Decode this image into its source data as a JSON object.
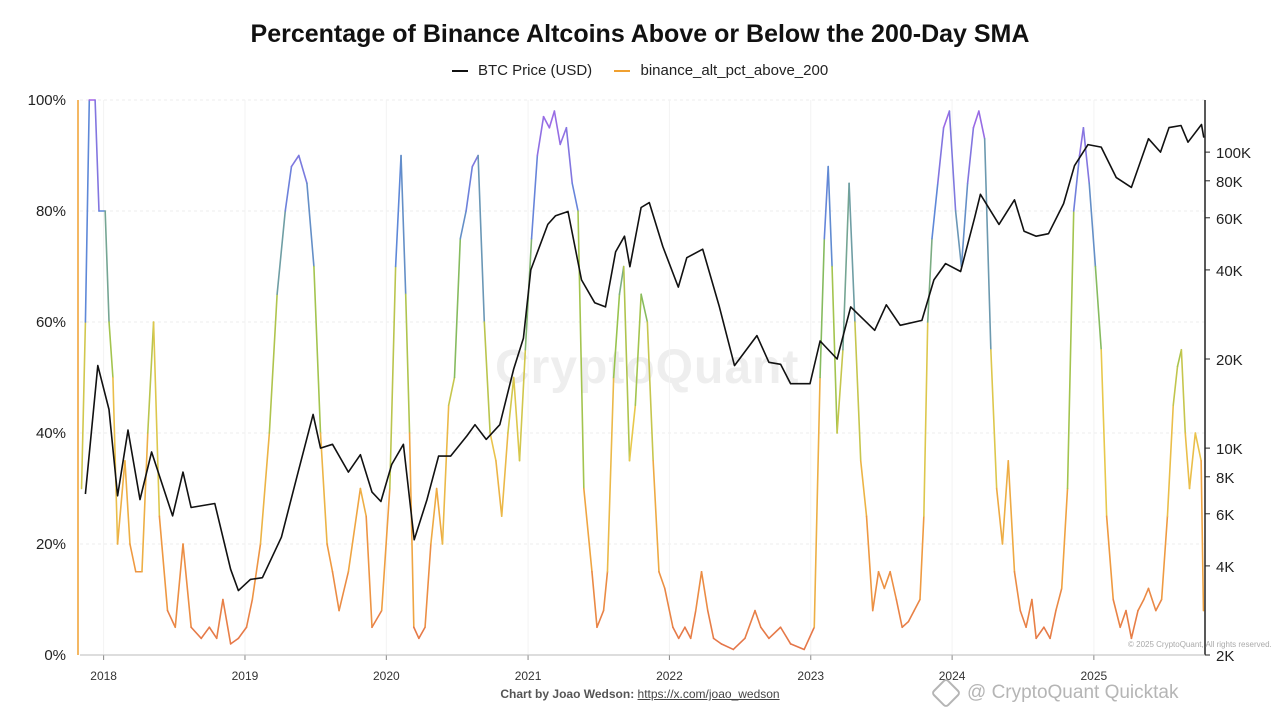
{
  "chart_data": {
    "type": "line",
    "title": "Percentage of Binance Altcoins Above or Below the 200-Day SMA",
    "legend_position": "top-center",
    "grid": true,
    "x_axis": {
      "type": "date",
      "range": [
        "2017-11-01",
        "2025-10-15"
      ],
      "tick_labels": [
        "2018",
        "2019",
        "2020",
        "2021",
        "2022",
        "2023",
        "2024",
        "2025"
      ]
    },
    "y_left": {
      "range": [
        0,
        100
      ],
      "unit": "%",
      "tick_labels": [
        "0%",
        "20%",
        "40%",
        "60%",
        "80%",
        "100%"
      ]
    },
    "y_right": {
      "scale": "log",
      "range": [
        2000,
        150000
      ],
      "ticks": [
        2000,
        4000,
        6000,
        8000,
        10000,
        20000,
        40000,
        60000,
        80000,
        100000
      ],
      "tick_labels": [
        "2K",
        "4K",
        "6K",
        "8K",
        "10K",
        "20K",
        "40K",
        "60K",
        "80K",
        "100K"
      ]
    },
    "series": [
      {
        "name": "BTC Price (USD)",
        "axis": "right",
        "color": "#111111",
        "points": [
          [
            "2017-11-15",
            7000
          ],
          [
            "2017-12-17",
            19000
          ],
          [
            "2018-01-15",
            13500
          ],
          [
            "2018-02-06",
            6900
          ],
          [
            "2018-03-05",
            11500
          ],
          [
            "2018-04-05",
            6700
          ],
          [
            "2018-05-05",
            9700
          ],
          [
            "2018-06-28",
            5900
          ],
          [
            "2018-07-25",
            8300
          ],
          [
            "2018-08-15",
            6300
          ],
          [
            "2018-10-15",
            6500
          ],
          [
            "2018-11-25",
            3900
          ],
          [
            "2018-12-15",
            3300
          ],
          [
            "2019-01-15",
            3600
          ],
          [
            "2019-02-15",
            3650
          ],
          [
            "2019-04-05",
            5000
          ],
          [
            "2019-05-15",
            8000
          ],
          [
            "2019-06-26",
            13000
          ],
          [
            "2019-07-15",
            10000
          ],
          [
            "2019-08-15",
            10300
          ],
          [
            "2019-09-25",
            8300
          ],
          [
            "2019-10-26",
            9500
          ],
          [
            "2019-11-25",
            7100
          ],
          [
            "2019-12-18",
            6600
          ],
          [
            "2020-01-15",
            8800
          ],
          [
            "2020-02-14",
            10300
          ],
          [
            "2020-03-13",
            4900
          ],
          [
            "2020-04-15",
            6700
          ],
          [
            "2020-05-15",
            9400
          ],
          [
            "2020-06-15",
            9400
          ],
          [
            "2020-07-27",
            11000
          ],
          [
            "2020-08-17",
            12000
          ],
          [
            "2020-09-15",
            10700
          ],
          [
            "2020-10-20",
            12000
          ],
          [
            "2020-11-25",
            18500
          ],
          [
            "2020-12-20",
            23500
          ],
          [
            "2021-01-08",
            40000
          ],
          [
            "2021-02-21",
            57000
          ],
          [
            "2021-03-13",
            61000
          ],
          [
            "2021-04-14",
            63000
          ],
          [
            "2021-05-19",
            37000
          ],
          [
            "2021-06-22",
            31000
          ],
          [
            "2021-07-20",
            30000
          ],
          [
            "2021-08-15",
            46000
          ],
          [
            "2021-09-07",
            52000
          ],
          [
            "2021-09-21",
            41000
          ],
          [
            "2021-10-20",
            65000
          ],
          [
            "2021-11-10",
            67500
          ],
          [
            "2021-12-15",
            48000
          ],
          [
            "2022-01-24",
            35000
          ],
          [
            "2022-02-15",
            44000
          ],
          [
            "2022-03-28",
            47000
          ],
          [
            "2022-05-10",
            30000
          ],
          [
            "2022-06-18",
            19000
          ],
          [
            "2022-08-15",
            24000
          ],
          [
            "2022-09-15",
            19500
          ],
          [
            "2022-10-15",
            19200
          ],
          [
            "2022-11-10",
            16500
          ],
          [
            "2022-12-30",
            16500
          ],
          [
            "2023-01-25",
            23000
          ],
          [
            "2023-03-10",
            20000
          ],
          [
            "2023-04-14",
            30000
          ],
          [
            "2023-06-15",
            25000
          ],
          [
            "2023-07-15",
            30500
          ],
          [
            "2023-08-20",
            26000
          ],
          [
            "2023-10-15",
            27000
          ],
          [
            "2023-11-15",
            37000
          ],
          [
            "2023-12-15",
            42000
          ],
          [
            "2024-01-23",
            39500
          ],
          [
            "2024-02-28",
            60000
          ],
          [
            "2024-03-14",
            72000
          ],
          [
            "2024-05-01",
            57000
          ],
          [
            "2024-06-10",
            69000
          ],
          [
            "2024-07-05",
            54000
          ],
          [
            "2024-08-05",
            52000
          ],
          [
            "2024-09-06",
            53000
          ],
          [
            "2024-10-15",
            67000
          ],
          [
            "2024-11-12",
            90000
          ],
          [
            "2024-12-17",
            106000
          ],
          [
            "2025-01-20",
            104000
          ],
          [
            "2025-02-28",
            82000
          ],
          [
            "2025-04-08",
            76000
          ],
          [
            "2025-05-22",
            111000
          ],
          [
            "2025-06-22",
            100000
          ],
          [
            "2025-07-14",
            121000
          ],
          [
            "2025-08-14",
            123000
          ],
          [
            "2025-09-01",
            108000
          ],
          [
            "2025-10-06",
            124000
          ],
          [
            "2025-10-12",
            112000
          ]
        ]
      },
      {
        "name": "binance_alt_pct_above_200",
        "axis": "left",
        "color": "#f0a030",
        "color_scale": [
          "#e4714a",
          "#f0a040",
          "#e8c84c",
          "#8cc24e",
          "#5e88d8",
          "#a864e8"
        ],
        "points": [
          [
            "2017-11-05",
            30
          ],
          [
            "2017-11-15",
            60
          ],
          [
            "2017-11-25",
            100
          ],
          [
            "2017-12-10",
            100
          ],
          [
            "2017-12-20",
            80
          ],
          [
            "2018-01-05",
            80
          ],
          [
            "2018-01-15",
            60
          ],
          [
            "2018-01-25",
            50
          ],
          [
            "2018-02-06",
            20
          ],
          [
            "2018-02-25",
            35
          ],
          [
            "2018-03-10",
            20
          ],
          [
            "2018-03-25",
            15
          ],
          [
            "2018-04-10",
            15
          ],
          [
            "2018-04-25",
            40
          ],
          [
            "2018-05-10",
            60
          ],
          [
            "2018-05-25",
            25
          ],
          [
            "2018-06-15",
            8
          ],
          [
            "2018-07-05",
            5
          ],
          [
            "2018-07-25",
            20
          ],
          [
            "2018-08-15",
            5
          ],
          [
            "2018-09-10",
            3
          ],
          [
            "2018-10-01",
            5
          ],
          [
            "2018-10-20",
            3
          ],
          [
            "2018-11-05",
            10
          ],
          [
            "2018-11-25",
            2
          ],
          [
            "2018-12-15",
            3
          ],
          [
            "2019-01-05",
            5
          ],
          [
            "2019-01-20",
            10
          ],
          [
            "2019-02-10",
            20
          ],
          [
            "2019-03-05",
            40
          ],
          [
            "2019-03-25",
            65
          ],
          [
            "2019-04-15",
            80
          ],
          [
            "2019-05-01",
            88
          ],
          [
            "2019-05-20",
            90
          ],
          [
            "2019-06-10",
            85
          ],
          [
            "2019-06-28",
            70
          ],
          [
            "2019-07-15",
            40
          ],
          [
            "2019-08-01",
            20
          ],
          [
            "2019-08-15",
            15
          ],
          [
            "2019-09-01",
            8
          ],
          [
            "2019-09-25",
            15
          ],
          [
            "2019-10-26",
            30
          ],
          [
            "2019-11-10",
            25
          ],
          [
            "2019-11-25",
            5
          ],
          [
            "2019-12-20",
            8
          ],
          [
            "2020-01-10",
            30
          ],
          [
            "2020-01-25",
            70
          ],
          [
            "2020-02-08",
            90
          ],
          [
            "2020-02-20",
            65
          ],
          [
            "2020-03-01",
            40
          ],
          [
            "2020-03-12",
            5
          ],
          [
            "2020-03-25",
            3
          ],
          [
            "2020-04-10",
            5
          ],
          [
            "2020-04-25",
            20
          ],
          [
            "2020-05-10",
            30
          ],
          [
            "2020-05-25",
            20
          ],
          [
            "2020-06-10",
            45
          ],
          [
            "2020-06-25",
            50
          ],
          [
            "2020-07-10",
            75
          ],
          [
            "2020-07-25",
            80
          ],
          [
            "2020-08-10",
            88
          ],
          [
            "2020-08-25",
            90
          ],
          [
            "2020-09-10",
            60
          ],
          [
            "2020-09-25",
            40
          ],
          [
            "2020-10-10",
            35
          ],
          [
            "2020-10-25",
            25
          ],
          [
            "2020-11-10",
            40
          ],
          [
            "2020-11-25",
            50
          ],
          [
            "2020-12-10",
            35
          ],
          [
            "2020-12-25",
            55
          ],
          [
            "2021-01-10",
            75
          ],
          [
            "2021-01-25",
            90
          ],
          [
            "2021-02-10",
            97
          ],
          [
            "2021-02-25",
            95
          ],
          [
            "2021-03-10",
            98
          ],
          [
            "2021-03-25",
            92
          ],
          [
            "2021-04-10",
            95
          ],
          [
            "2021-04-25",
            85
          ],
          [
            "2021-05-10",
            80
          ],
          [
            "2021-05-25",
            30
          ],
          [
            "2021-06-15",
            15
          ],
          [
            "2021-06-28",
            5
          ],
          [
            "2021-07-15",
            8
          ],
          [
            "2021-07-25",
            15
          ],
          [
            "2021-08-10",
            50
          ],
          [
            "2021-08-25",
            65
          ],
          [
            "2021-09-05",
            70
          ],
          [
            "2021-09-20",
            35
          ],
          [
            "2021-10-05",
            45
          ],
          [
            "2021-10-20",
            65
          ],
          [
            "2021-11-05",
            60
          ],
          [
            "2021-11-20",
            35
          ],
          [
            "2021-12-05",
            15
          ],
          [
            "2021-12-20",
            12
          ],
          [
            "2022-01-10",
            5
          ],
          [
            "2022-01-25",
            3
          ],
          [
            "2022-02-10",
            5
          ],
          [
            "2022-02-25",
            3
          ],
          [
            "2022-03-10",
            8
          ],
          [
            "2022-03-25",
            15
          ],
          [
            "2022-04-10",
            8
          ],
          [
            "2022-04-25",
            3
          ],
          [
            "2022-05-15",
            2
          ],
          [
            "2022-06-15",
            1
          ],
          [
            "2022-07-15",
            3
          ],
          [
            "2022-08-10",
            8
          ],
          [
            "2022-08-25",
            5
          ],
          [
            "2022-09-15",
            3
          ],
          [
            "2022-10-15",
            5
          ],
          [
            "2022-11-10",
            2
          ],
          [
            "2022-12-15",
            1
          ],
          [
            "2023-01-10",
            5
          ],
          [
            "2023-01-25",
            50
          ],
          [
            "2023-02-05",
            75
          ],
          [
            "2023-02-15",
            88
          ],
          [
            "2023-02-25",
            70
          ],
          [
            "2023-03-10",
            40
          ],
          [
            "2023-03-25",
            55
          ],
          [
            "2023-04-10",
            85
          ],
          [
            "2023-04-25",
            60
          ],
          [
            "2023-05-10",
            35
          ],
          [
            "2023-05-25",
            25
          ],
          [
            "2023-06-10",
            8
          ],
          [
            "2023-06-25",
            15
          ],
          [
            "2023-07-10",
            12
          ],
          [
            "2023-07-25",
            15
          ],
          [
            "2023-08-10",
            10
          ],
          [
            "2023-08-25",
            5
          ],
          [
            "2023-09-10",
            6
          ],
          [
            "2023-09-25",
            8
          ],
          [
            "2023-10-10",
            10
          ],
          [
            "2023-10-20",
            25
          ],
          [
            "2023-10-30",
            60
          ],
          [
            "2023-11-10",
            75
          ],
          [
            "2023-11-25",
            85
          ],
          [
            "2023-12-10",
            95
          ],
          [
            "2023-12-25",
            98
          ],
          [
            "2024-01-10",
            80
          ],
          [
            "2024-01-25",
            70
          ],
          [
            "2024-02-10",
            85
          ],
          [
            "2024-02-25",
            95
          ],
          [
            "2024-03-10",
            98
          ],
          [
            "2024-03-25",
            93
          ],
          [
            "2024-04-10",
            55
          ],
          [
            "2024-04-25",
            30
          ],
          [
            "2024-05-10",
            20
          ],
          [
            "2024-05-25",
            35
          ],
          [
            "2024-06-10",
            15
          ],
          [
            "2024-06-25",
            8
          ],
          [
            "2024-07-10",
            5
          ],
          [
            "2024-07-25",
            10
          ],
          [
            "2024-08-05",
            3
          ],
          [
            "2024-08-25",
            5
          ],
          [
            "2024-09-10",
            3
          ],
          [
            "2024-09-25",
            8
          ],
          [
            "2024-10-10",
            12
          ],
          [
            "2024-10-25",
            30
          ],
          [
            "2024-11-10",
            80
          ],
          [
            "2024-11-25",
            90
          ],
          [
            "2024-12-05",
            95
          ],
          [
            "2024-12-20",
            85
          ],
          [
            "2025-01-05",
            70
          ],
          [
            "2025-01-20",
            55
          ],
          [
            "2025-02-03",
            25
          ],
          [
            "2025-02-20",
            10
          ],
          [
            "2025-03-10",
            5
          ],
          [
            "2025-03-25",
            8
          ],
          [
            "2025-04-08",
            3
          ],
          [
            "2025-04-25",
            8
          ],
          [
            "2025-05-10",
            10
          ],
          [
            "2025-05-22",
            12
          ],
          [
            "2025-06-10",
            8
          ],
          [
            "2025-06-25",
            10
          ],
          [
            "2025-07-10",
            25
          ],
          [
            "2025-07-25",
            45
          ],
          [
            "2025-08-05",
            52
          ],
          [
            "2025-08-15",
            55
          ],
          [
            "2025-08-25",
            40
          ],
          [
            "2025-09-05",
            30
          ],
          [
            "2025-09-20",
            40
          ],
          [
            "2025-10-05",
            35
          ],
          [
            "2025-10-11",
            8
          ]
        ]
      }
    ]
  },
  "credit": {
    "by": "Chart by Joao Wedson:",
    "link": "https://x.com/joao_wedson"
  },
  "watermark_text": "@ CryptoQuant Quicktak",
  "logo_text": "CryptoQuant",
  "copyright_text": "© 2025 CryptoQuant, All rights reserved."
}
